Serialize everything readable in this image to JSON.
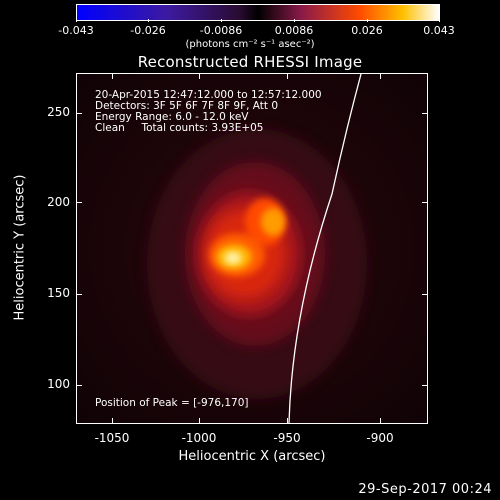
{
  "colorbar": {
    "ticks": [
      "-0.043",
      "-0.026",
      "-0.0086",
      "0.0086",
      "0.026",
      "0.043"
    ],
    "units": "(photons cm⁻² s⁻¹ asec⁻²)"
  },
  "title": "Reconstructed RHESSI Image",
  "info": {
    "time_range": "20-Apr-2015 12:47:12.000 to 12:57:12.000",
    "detectors": "Detectors: 3F 5F 6F 7F 8F 9F, Att 0",
    "energy": "Energy Range: 6.0 - 12.0 keV",
    "clean": "Clean     Total counts: 3.93E+05",
    "peak": "Position of Peak = [-976,170]"
  },
  "axes": {
    "xlabel": "Heliocentric X (arcsec)",
    "ylabel": "Heliocentric Y (arcsec)",
    "xticks": [
      "-1050",
      "-1000",
      "-950",
      "-900"
    ],
    "yticks": [
      "250",
      "200",
      "150",
      "100"
    ]
  },
  "timestamp": "29-Sep-2017 00:24",
  "colors": {
    "background": "#000000",
    "foreground": "#ffffff",
    "limb": "#ffffff"
  }
}
